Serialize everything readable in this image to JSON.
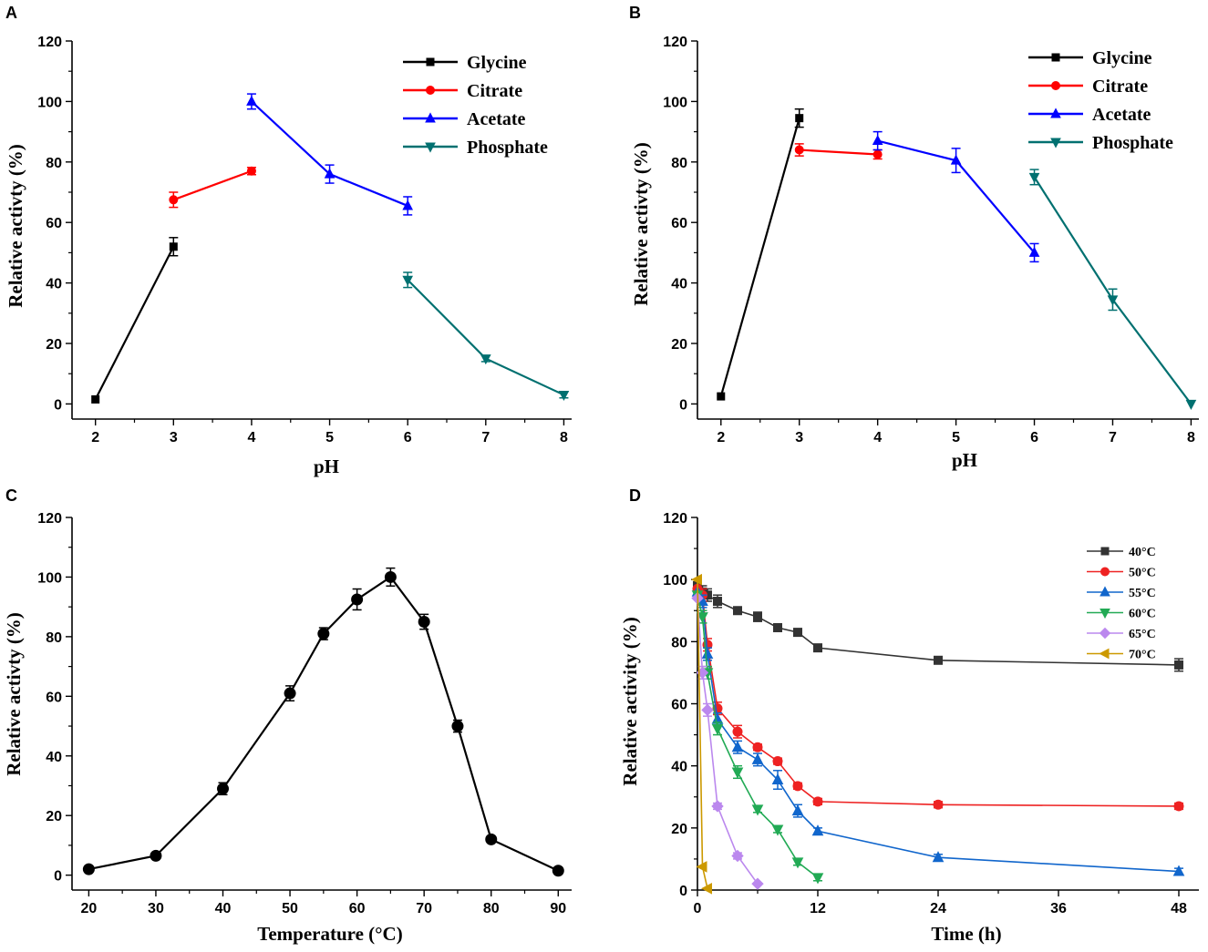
{
  "chart_data": [
    {
      "panel_label": "A",
      "type": "line",
      "xlabel": "pH",
      "ylabel": "Relative activty (%)",
      "xlim": [
        1.7,
        8.1
      ],
      "ylim": [
        -5,
        120
      ],
      "xticks": [
        2,
        3,
        4,
        5,
        6,
        7,
        8
      ],
      "yticks": [
        0,
        20,
        40,
        60,
        80,
        100,
        120
      ],
      "legend_position": "top-right",
      "legend_style": "large",
      "series": [
        {
          "name": "Glycine",
          "color": "#000000",
          "marker": "square",
          "x": [
            2,
            3
          ],
          "y": [
            1.5,
            52
          ],
          "err": [
            0,
            3
          ]
        },
        {
          "name": "Citrate",
          "color": "#ff0000",
          "marker": "circle",
          "x": [
            3,
            4
          ],
          "y": [
            67.5,
            77
          ],
          "err": [
            2.5,
            1.2
          ]
        },
        {
          "name": "Acetate",
          "color": "#0000ff",
          "marker": "triangle-up",
          "x": [
            4,
            5,
            6
          ],
          "y": [
            100,
            76,
            65.5
          ],
          "err": [
            2.5,
            3,
            3
          ]
        },
        {
          "name": "Phosphate",
          "color": "#007070",
          "marker": "triangle-down",
          "x": [
            6,
            7,
            8
          ],
          "y": [
            41,
            15,
            3
          ],
          "err": [
            2.5,
            1,
            1
          ]
        }
      ]
    },
    {
      "panel_label": "B",
      "type": "line",
      "xlabel": "pH",
      "ylabel": "Relative activty (%)",
      "xlim": [
        1.7,
        8.1
      ],
      "ylim": [
        -5,
        120
      ],
      "xticks": [
        2,
        3,
        4,
        5,
        6,
        7,
        8
      ],
      "yticks": [
        0,
        20,
        40,
        60,
        80,
        100,
        120
      ],
      "legend_position": "top-right",
      "legend_style": "large",
      "series": [
        {
          "name": "Glycine",
          "color": "#000000",
          "marker": "square",
          "x": [
            2,
            3
          ],
          "y": [
            2.5,
            94.5
          ],
          "err": [
            0,
            3
          ]
        },
        {
          "name": "Citrate",
          "color": "#ff0000",
          "marker": "circle",
          "x": [
            3,
            4
          ],
          "y": [
            84,
            82.5
          ],
          "err": [
            2,
            1.5
          ]
        },
        {
          "name": "Acetate",
          "color": "#0000ff",
          "marker": "triangle-up",
          "x": [
            4,
            5,
            6
          ],
          "y": [
            87,
            80.5,
            50
          ],
          "err": [
            3,
            4,
            3
          ]
        },
        {
          "name": "Phosphate",
          "color": "#007070",
          "marker": "triangle-down",
          "x": [
            6,
            7,
            8
          ],
          "y": [
            75,
            34.5,
            0
          ],
          "err": [
            2.5,
            3.5,
            0
          ]
        }
      ]
    },
    {
      "panel_label": "C",
      "type": "line",
      "xlabel": "Temperature (°C)",
      "ylabel": "Relative activty (%)",
      "xlim": [
        17.5,
        92
      ],
      "ylim": [
        -5,
        120
      ],
      "xticks": [
        20,
        30,
        40,
        50,
        60,
        70,
        80,
        90
      ],
      "yticks": [
        0,
        20,
        40,
        60,
        80,
        100,
        120
      ],
      "legend_position": "none",
      "series": [
        {
          "name": "Activity",
          "color": "#000000",
          "marker": "circle-large",
          "x": [
            20,
            30,
            40,
            50,
            55,
            60,
            65,
            70,
            75,
            80,
            90
          ],
          "y": [
            2,
            6.5,
            29,
            61,
            81,
            92.5,
            100,
            85,
            50,
            12,
            1.5
          ],
          "err": [
            0,
            0,
            2,
            2.5,
            2,
            3.5,
            3,
            2.5,
            2,
            0,
            0
          ]
        }
      ]
    },
    {
      "panel_label": "D",
      "type": "line",
      "xlabel": "Time (h)",
      "ylabel": "Relative activity (%)",
      "xlim": [
        0,
        50
      ],
      "ylim": [
        0,
        120
      ],
      "xticks": [
        0,
        12,
        24,
        36,
        48
      ],
      "yticks": [
        0,
        20,
        40,
        60,
        80,
        100,
        120
      ],
      "legend_position": "top-right",
      "legend_style": "small",
      "series": [
        {
          "name": "40°C",
          "color": "#333333",
          "marker": "square",
          "x": [
            0,
            0.5,
            1,
            2,
            4,
            6,
            8,
            10,
            12,
            24,
            48
          ],
          "y": [
            98,
            96,
            95,
            93,
            90,
            88,
            84.5,
            83,
            78,
            74,
            72.5
          ],
          "err": [
            0,
            2,
            2,
            2,
            1,
            1.5,
            1,
            1,
            1,
            1,
            2
          ]
        },
        {
          "name": "50°C",
          "color": "#ee2222",
          "marker": "circle",
          "x": [
            0,
            0.5,
            1,
            2,
            4,
            6,
            8,
            10,
            12,
            24,
            48
          ],
          "y": [
            97,
            95,
            79,
            58.5,
            51,
            46,
            41.5,
            33.5,
            28.5,
            27.5,
            27
          ],
          "err": [
            0,
            2,
            2,
            2,
            2,
            1,
            1,
            1,
            1,
            1,
            1
          ]
        },
        {
          "name": "55°C",
          "color": "#1166cc",
          "marker": "triangle-up",
          "x": [
            0,
            0.5,
            1,
            2,
            4,
            6,
            8,
            10,
            12,
            24,
            48
          ],
          "y": [
            96,
            93,
            76,
            55,
            46,
            42,
            35.5,
            25.5,
            19,
            10.5,
            6
          ],
          "err": [
            0,
            2,
            2,
            2,
            2,
            2,
            3,
            2,
            1,
            1,
            1
          ]
        },
        {
          "name": "60°C",
          "color": "#22aa55",
          "marker": "triangle-down",
          "x": [
            0,
            0.5,
            1,
            2,
            4,
            6,
            8,
            10,
            12
          ],
          "y": [
            95,
            88,
            70,
            52,
            38,
            26,
            19.5,
            9,
            4
          ],
          "err": [
            0,
            2,
            2,
            2,
            2,
            1,
            1,
            1,
            1
          ]
        },
        {
          "name": "65°C",
          "color": "#bb88ee",
          "marker": "diamond",
          "x": [
            0,
            0.5,
            1,
            2,
            4,
            6
          ],
          "y": [
            94,
            70,
            58,
            27,
            11,
            2
          ],
          "err": [
            0,
            2,
            2,
            1,
            1,
            0
          ]
        },
        {
          "name": "70°C",
          "color": "#cc9900",
          "marker": "triangle-left",
          "x": [
            0,
            0.5,
            1
          ],
          "y": [
            100,
            7.5,
            0.5
          ],
          "err": [
            0,
            0,
            0
          ]
        }
      ]
    }
  ]
}
